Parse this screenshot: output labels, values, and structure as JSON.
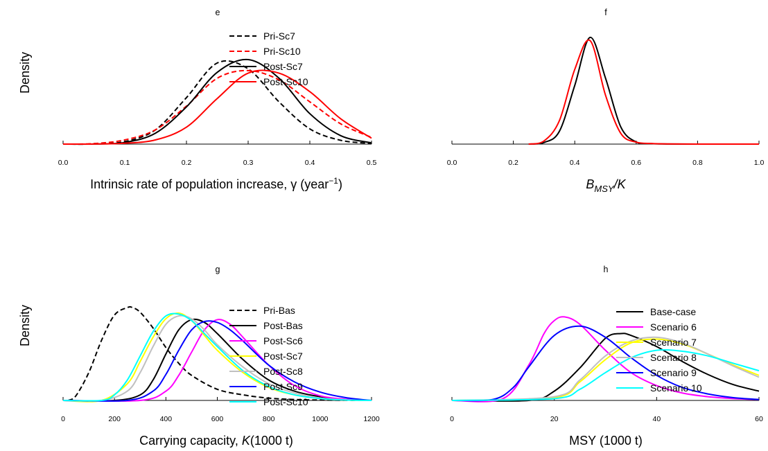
{
  "chart_data": [
    {
      "panel": "e",
      "type": "line",
      "title": "e",
      "xlabel": "Intrinsic rate of population increase, γ (year⁻¹)",
      "xlabel_parts": {
        "main": "Intrinsic rate of population increase, ",
        "symbol": "γ",
        "unit_open": " (year",
        "sup": "−1",
        "unit_close": ")"
      },
      "ylabel": "Density",
      "xlim": [
        0.0,
        0.5
      ],
      "xticks": [
        0.0,
        0.1,
        0.2,
        0.3,
        0.4,
        0.5
      ],
      "xtick_labels": [
        "0.0",
        "0.1",
        "0.2",
        "0.3",
        "0.4",
        "0.5"
      ],
      "legend_position": "top-right",
      "series": [
        {
          "name": "Pri-Sc7",
          "color": "#000000",
          "dash": "dashed",
          "x": [
            0.0,
            0.05,
            0.1,
            0.15,
            0.2,
            0.25,
            0.3,
            0.35,
            0.4,
            0.45,
            0.5
          ],
          "y": [
            0.0,
            0.002,
            0.03,
            0.17,
            0.55,
            0.96,
            0.89,
            0.5,
            0.18,
            0.045,
            0.008
          ]
        },
        {
          "name": "Pri-Sc10",
          "color": "#ff0000",
          "dash": "dashed",
          "x": [
            0.0,
            0.05,
            0.1,
            0.15,
            0.2,
            0.25,
            0.3,
            0.35,
            0.4,
            0.45,
            0.5
          ],
          "y": [
            0.0,
            0.006,
            0.05,
            0.17,
            0.45,
            0.78,
            0.87,
            0.76,
            0.5,
            0.24,
            0.08
          ]
        },
        {
          "name": "Post-Sc7",
          "color": "#000000",
          "dash": "solid",
          "x": [
            0.0,
            0.05,
            0.1,
            0.15,
            0.2,
            0.25,
            0.3,
            0.35,
            0.4,
            0.45,
            0.5
          ],
          "y": [
            0.0,
            0.001,
            0.02,
            0.13,
            0.44,
            0.85,
            1.0,
            0.78,
            0.36,
            0.1,
            0.015
          ]
        },
        {
          "name": "Post-Sc10",
          "color": "#ff0000",
          "dash": "solid",
          "x": [
            0.0,
            0.05,
            0.1,
            0.15,
            0.2,
            0.25,
            0.3,
            0.35,
            0.4,
            0.45,
            0.5
          ],
          "y": [
            0.0,
            0.001,
            0.01,
            0.05,
            0.2,
            0.54,
            0.84,
            0.84,
            0.62,
            0.3,
            0.07
          ]
        }
      ]
    },
    {
      "panel": "f",
      "type": "line",
      "title": "f",
      "xlabel": "B_MSY / K",
      "xlabel_parts": {
        "main": "B",
        "sub": "MSY",
        "rest": "/K"
      },
      "ylabel": "",
      "xlim": [
        0.0,
        1.0
      ],
      "xticks": [
        0.0,
        0.2,
        0.4,
        0.6,
        0.8,
        1.0
      ],
      "xtick_labels": [
        "0.0",
        "0.2",
        "0.4",
        "0.6",
        "0.8",
        "1.0"
      ],
      "legend_position": "none",
      "series": [
        {
          "color": "#000000",
          "dash": "solid",
          "x": [
            0.25,
            0.3,
            0.35,
            0.4,
            0.45,
            0.5,
            0.55,
            0.6,
            0.65,
            0.7,
            0.8,
            1.0
          ],
          "y": [
            0.0,
            0.015,
            0.12,
            0.55,
            1.0,
            0.62,
            0.16,
            0.02,
            0.004,
            0.001,
            0.0,
            0.0
          ]
        },
        {
          "color": "#ff0000",
          "dash": "solid",
          "x": [
            0.25,
            0.3,
            0.35,
            0.4,
            0.45,
            0.5,
            0.55,
            0.6,
            0.65,
            0.7,
            0.8,
            1.0
          ],
          "y": [
            0.0,
            0.03,
            0.22,
            0.7,
            0.97,
            0.46,
            0.1,
            0.018,
            0.006,
            0.002,
            0.0,
            0.0
          ]
        }
      ]
    },
    {
      "panel": "g",
      "type": "line",
      "title": "g",
      "xlabel": "Carrying capacity, K (1000 t)",
      "xlabel_parts": {
        "main": "Carrying capacity, ",
        "symbol": "K",
        "rest": "(1000 t)"
      },
      "ylabel": "Density",
      "xlim": [
        0,
        1200
      ],
      "xticks": [
        0,
        200,
        400,
        600,
        800,
        1000,
        1200
      ],
      "xtick_labels": [
        "0",
        "200",
        "400",
        "600",
        "800",
        "1000",
        "1200"
      ],
      "legend_position": "top-right",
      "series": [
        {
          "name": "Pri-Bas",
          "color": "#000000",
          "dash": "dashed",
          "x": [
            20,
            50,
            100,
            150,
            200,
            250,
            270,
            300,
            350,
            400,
            450,
            500,
            600,
            700,
            800,
            900,
            1000,
            1200
          ],
          "y": [
            0.0,
            0.05,
            0.3,
            0.65,
            0.92,
            1.0,
            1.0,
            0.95,
            0.78,
            0.57,
            0.4,
            0.27,
            0.12,
            0.06,
            0.025,
            0.01,
            0.004,
            0.0
          ]
        },
        {
          "name": "Post-Bas",
          "color": "#000000",
          "dash": "solid",
          "x": [
            0,
            200,
            300,
            350,
            400,
            450,
            500,
            550,
            600,
            700,
            800,
            900,
            1000,
            1100,
            1200
          ],
          "y": [
            0.0,
            0.0,
            0.06,
            0.22,
            0.5,
            0.76,
            0.87,
            0.84,
            0.72,
            0.44,
            0.22,
            0.1,
            0.04,
            0.01,
            0.0
          ]
        },
        {
          "name": "Post-Sc6",
          "color": "#ff00ff",
          "dash": "solid",
          "x": [
            0,
            300,
            400,
            450,
            500,
            550,
            600,
            650,
            700,
            800,
            900,
            1000,
            1100,
            1200
          ],
          "y": [
            0.0,
            0.0,
            0.1,
            0.27,
            0.52,
            0.76,
            0.87,
            0.82,
            0.68,
            0.38,
            0.16,
            0.05,
            0.012,
            0.0
          ]
        },
        {
          "name": "Post-Sc7",
          "color": "#ffff00",
          "dash": "solid",
          "x": [
            0,
            150,
            250,
            300,
            350,
            400,
            450,
            500,
            550,
            600,
            700,
            800,
            900,
            1000,
            1100,
            1200
          ],
          "y": [
            0.0,
            0.0,
            0.18,
            0.42,
            0.68,
            0.88,
            0.94,
            0.86,
            0.7,
            0.54,
            0.3,
            0.14,
            0.06,
            0.02,
            0.005,
            0.0
          ]
        },
        {
          "name": "Post-Sc8",
          "color": "#c0c0c0",
          "dash": "solid",
          "x": [
            0,
            150,
            250,
            300,
            350,
            400,
            450,
            500,
            550,
            600,
            700,
            800,
            900,
            1000,
            1100,
            1200
          ],
          "y": [
            0.0,
            0.0,
            0.1,
            0.3,
            0.58,
            0.82,
            0.91,
            0.88,
            0.76,
            0.6,
            0.36,
            0.18,
            0.08,
            0.025,
            0.006,
            0.0
          ]
        },
        {
          "name": "Post-Sc9",
          "color": "#0000ff",
          "dash": "solid",
          "x": [
            0,
            250,
            350,
            400,
            450,
            500,
            550,
            600,
            650,
            700,
            800,
            900,
            1000,
            1100,
            1200
          ],
          "y": [
            0.0,
            0.0,
            0.1,
            0.28,
            0.54,
            0.76,
            0.85,
            0.84,
            0.76,
            0.64,
            0.38,
            0.2,
            0.09,
            0.03,
            0.0
          ]
        },
        {
          "name": "Post-Sc10",
          "color": "#00ffff",
          "dash": "solid",
          "x": [
            0,
            150,
            200,
            250,
            300,
            350,
            400,
            450,
            500,
            550,
            600,
            700,
            800,
            900,
            1000,
            1100,
            1200
          ],
          "y": [
            0.0,
            0.0,
            0.06,
            0.22,
            0.48,
            0.74,
            0.91,
            0.93,
            0.86,
            0.72,
            0.58,
            0.32,
            0.15,
            0.06,
            0.02,
            0.005,
            0.0
          ]
        }
      ]
    },
    {
      "panel": "h",
      "type": "line",
      "title": "h",
      "xlabel": "MSY (1000 t)",
      "ylabel": "",
      "xlim": [
        0,
        60
      ],
      "xticks": [
        0,
        20,
        40,
        60
      ],
      "xtick_labels": [
        "0",
        "20",
        "40",
        "60"
      ],
      "legend_position": "top-right",
      "series": [
        {
          "name": "Base-case",
          "color": "#000000",
          "dash": "solid",
          "x": [
            0,
            15,
            20,
            25,
            30,
            33,
            35,
            40,
            45,
            50,
            55,
            60
          ],
          "y": [
            0.0,
            0.0,
            0.1,
            0.35,
            0.67,
            0.72,
            0.7,
            0.58,
            0.42,
            0.28,
            0.17,
            0.1
          ]
        },
        {
          "name": "Scenario 6",
          "color": "#ff00ff",
          "dash": "solid",
          "x": [
            0,
            10,
            15,
            18,
            20,
            22,
            25,
            30,
            35,
            40,
            45,
            50,
            55,
            60
          ],
          "y": [
            0.0,
            0.02,
            0.38,
            0.72,
            0.86,
            0.9,
            0.82,
            0.54,
            0.3,
            0.16,
            0.08,
            0.04,
            0.02,
            0.01
          ]
        },
        {
          "name": "Scenario 7",
          "color": "#ffff00",
          "dash": "solid",
          "x": [
            0,
            20,
            25,
            30,
            35,
            40,
            45,
            50,
            55,
            60
          ],
          "y": [
            0.0,
            0.03,
            0.2,
            0.44,
            0.62,
            0.66,
            0.61,
            0.5,
            0.38,
            0.27
          ]
        },
        {
          "name": "Scenario 8",
          "color": "#c0c0c0",
          "dash": "solid",
          "x": [
            0,
            20,
            25,
            30,
            35,
            40,
            45,
            50,
            55,
            60
          ],
          "y": [
            0.0,
            0.04,
            0.22,
            0.48,
            0.64,
            0.68,
            0.62,
            0.5,
            0.37,
            0.25
          ]
        },
        {
          "name": "Scenario 9",
          "color": "#0000ff",
          "dash": "solid",
          "x": [
            0,
            8,
            12,
            15,
            20,
            25,
            30,
            35,
            40,
            45,
            50,
            55,
            60
          ],
          "y": [
            0.0,
            0.01,
            0.14,
            0.36,
            0.7,
            0.8,
            0.68,
            0.46,
            0.27,
            0.14,
            0.07,
            0.03,
            0.01
          ]
        },
        {
          "name": "Scenario 10",
          "color": "#00ffff",
          "dash": "solid",
          "x": [
            0,
            20,
            25,
            30,
            35,
            40,
            45,
            50,
            55,
            60
          ],
          "y": [
            0.0,
            0.02,
            0.12,
            0.3,
            0.46,
            0.54,
            0.53,
            0.48,
            0.4,
            0.32
          ]
        }
      ]
    }
  ]
}
